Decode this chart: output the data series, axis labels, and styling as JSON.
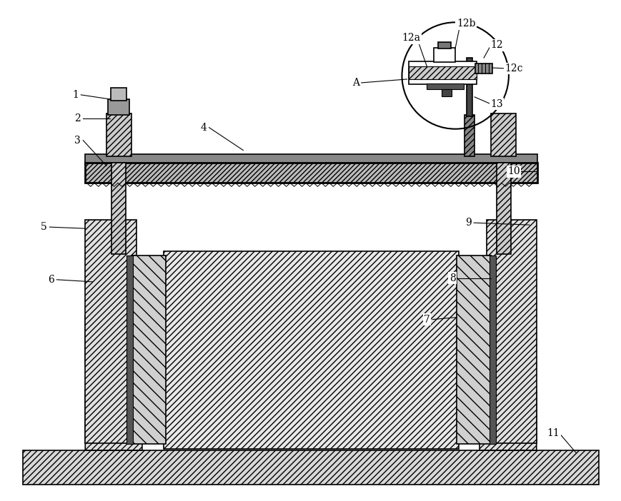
{
  "figsize": [
    8.7,
    7.02
  ],
  "dpi": 100,
  "bg_color": "#ffffff",
  "line_color": "#000000",
  "labels": [
    [
      "1",
      105,
      132
    ],
    [
      "2",
      108,
      165
    ],
    [
      "3",
      108,
      196
    ],
    [
      "4",
      285,
      178
    ],
    [
      "5",
      62,
      318
    ],
    [
      "6",
      72,
      392
    ],
    [
      "7",
      600,
      448
    ],
    [
      "8",
      635,
      390
    ],
    [
      "9",
      658,
      312
    ],
    [
      "10",
      722,
      240
    ],
    [
      "11",
      778,
      608
    ],
    [
      "12",
      698,
      62
    ],
    [
      "12a",
      578,
      52
    ],
    [
      "12b",
      655,
      32
    ],
    [
      "12c",
      722,
      95
    ],
    [
      "13",
      698,
      145
    ],
    [
      "A",
      500,
      115
    ]
  ]
}
